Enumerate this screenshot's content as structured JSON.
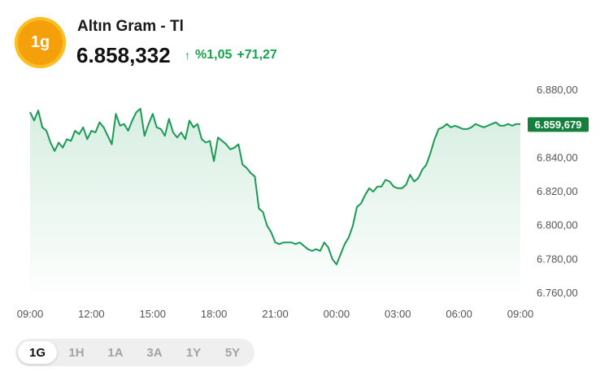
{
  "header": {
    "logo_text": "1g",
    "title": "Altın Gram - Tl",
    "price": "6.858,332",
    "change_arrow": "↑",
    "change_percent": "%1,05",
    "change_abs": "+71,27"
  },
  "colors": {
    "accent": "#16a34a",
    "line": "#1a9a55",
    "logo": "#f59f0a",
    "price_tag": "#15803d"
  },
  "range_tabs": [
    {
      "label": "1G",
      "active": true
    },
    {
      "label": "1H",
      "active": false
    },
    {
      "label": "1A",
      "active": false
    },
    {
      "label": "3A",
      "active": false
    },
    {
      "label": "1Y",
      "active": false
    },
    {
      "label": "5Y",
      "active": false
    }
  ],
  "chart_data": {
    "type": "area",
    "x_tick_labels": [
      "09:00",
      "12:00",
      "15:00",
      "18:00",
      "21:00",
      "00:00",
      "03:00",
      "06:00",
      "09:00"
    ],
    "y_tick_labels": [
      "6.880,00",
      "6.860,00",
      "6.840,00",
      "6.820,00",
      "6.800,00",
      "6.780,00",
      "6.760,00"
    ],
    "y_ticks": [
      6880,
      6860,
      6840,
      6820,
      6800,
      6780,
      6760
    ],
    "ylim": [
      6760,
      6880
    ],
    "xlim": [
      0,
      24
    ],
    "last_value_label": "6.859,679",
    "last_value": 6859.679,
    "grid": false,
    "series": [
      {
        "x": [
          0,
          0.2,
          0.4,
          0.6,
          0.8,
          1.0,
          1.2,
          1.4,
          1.6,
          1.8,
          2.0,
          2.2,
          2.4,
          2.6,
          2.8,
          3.0,
          3.2,
          3.4,
          3.6,
          3.8,
          4.0,
          4.2,
          4.4,
          4.6,
          4.8,
          5.0,
          5.2,
          5.4,
          5.6,
          5.8,
          6.0,
          6.2,
          6.4,
          6.6,
          6.8,
          7.0,
          7.2,
          7.4,
          7.6,
          7.8,
          8.0,
          8.2,
          8.4,
          8.6,
          8.8,
          9.0,
          9.2,
          9.4,
          9.6,
          9.8,
          10.0,
          10.2,
          10.4,
          10.6,
          10.8,
          11.0,
          11.2,
          11.4,
          11.6,
          11.8,
          12.0,
          12.2,
          12.4,
          12.6,
          12.8,
          13.0,
          13.2,
          13.4,
          13.6,
          13.8,
          14.0,
          14.2,
          14.4,
          14.6,
          14.8,
          15.0,
          15.2,
          15.4,
          15.6,
          15.8,
          16.0,
          16.2,
          16.4,
          16.6,
          16.8,
          17.0,
          17.2,
          17.4,
          17.6,
          17.8,
          18.0,
          18.2,
          18.4,
          18.6,
          18.8,
          19.0,
          19.2,
          19.4,
          19.6,
          19.8,
          20.0,
          20.2,
          20.4,
          20.6,
          20.8,
          21.0,
          21.2,
          21.4,
          21.6,
          21.8,
          22.0,
          22.2,
          22.4,
          22.6,
          22.8,
          23.0,
          23.2,
          23.4,
          23.6,
          23.8,
          24.0
        ],
        "values": [
          6867,
          6862,
          6868,
          6858,
          6856,
          6849,
          6844,
          6849,
          6846,
          6851,
          6850,
          6856,
          6854,
          6858,
          6851,
          6856,
          6855,
          6861,
          6858,
          6853,
          6848,
          6866,
          6859,
          6860,
          6856,
          6862,
          6867,
          6869,
          6853,
          6860,
          6866,
          6858,
          6857,
          6853,
          6863,
          6855,
          6852,
          6855,
          6851,
          6862,
          6858,
          6860,
          6851,
          6849,
          6850,
          6838,
          6852,
          6850,
          6848,
          6845,
          6846,
          6848,
          6836,
          6834,
          6831,
          6829,
          6810,
          6808,
          6800,
          6796,
          6790,
          6789,
          6790,
          6790,
          6790,
          6789,
          6790,
          6788,
          6786,
          6785,
          6786,
          6785,
          6790,
          6787,
          6780,
          6777,
          6783,
          6789,
          6793,
          6800,
          6811,
          6813,
          6818,
          6822,
          6820,
          6823,
          6823,
          6827,
          6826,
          6823,
          6822,
          6822,
          6824,
          6830,
          6826,
          6828,
          6833,
          6836,
          6843,
          6851,
          6857,
          6858,
          6860,
          6858,
          6859,
          6858,
          6857,
          6857,
          6858,
          6860,
          6859,
          6858,
          6859,
          6860,
          6861,
          6859,
          6859,
          6860,
          6859,
          6860,
          6860
        ]
      }
    ]
  }
}
